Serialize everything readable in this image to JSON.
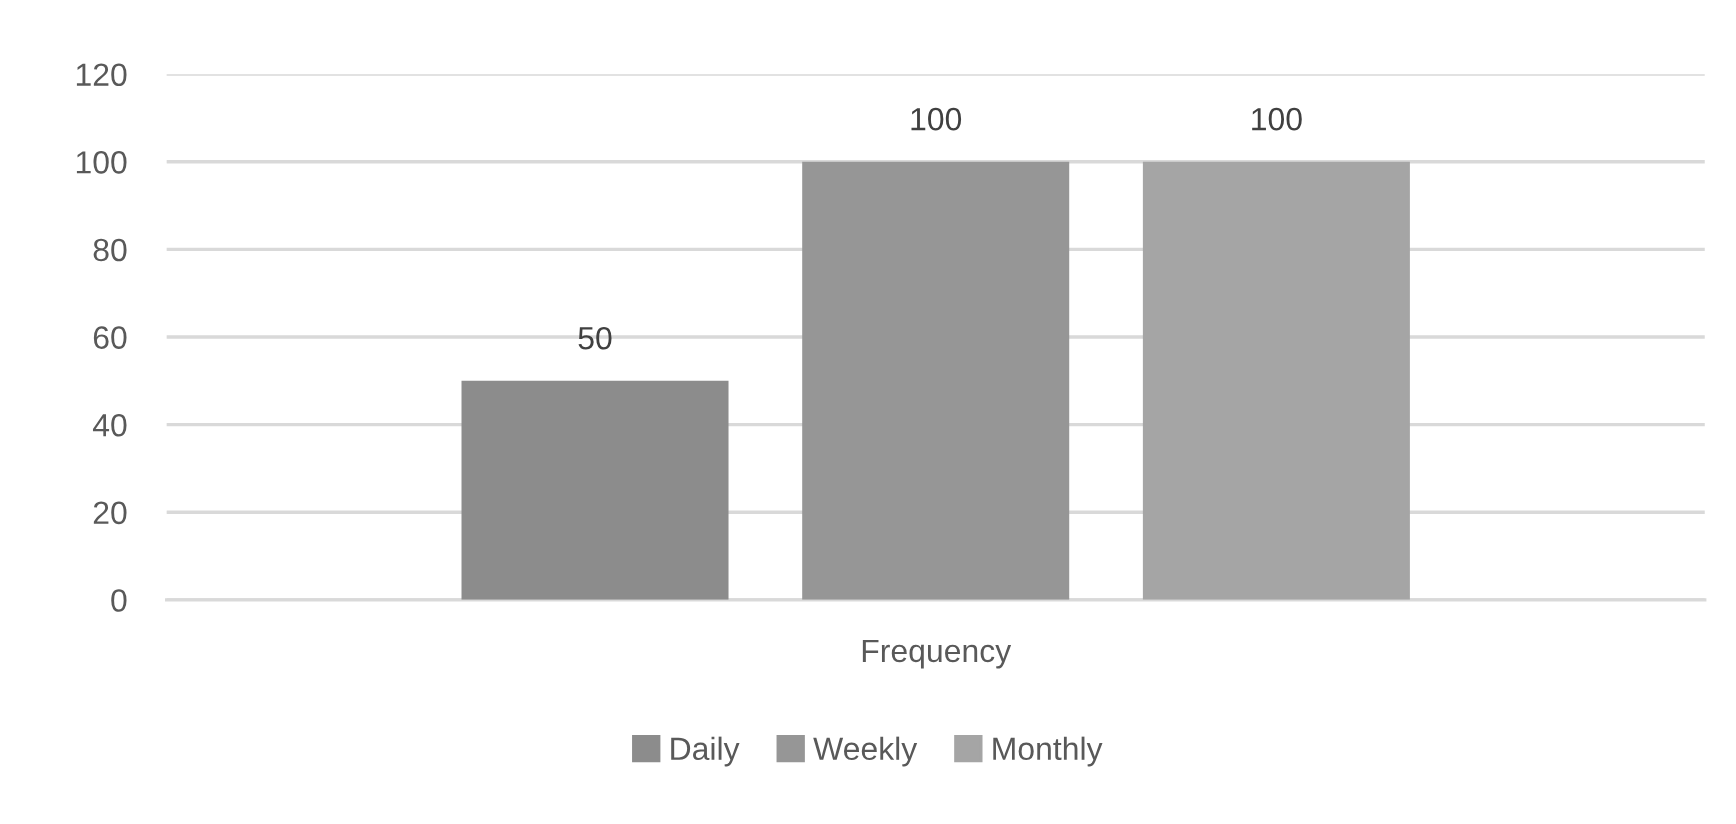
{
  "chart_data": {
    "type": "bar",
    "categories": [
      "Frequency"
    ],
    "series": [
      {
        "name": "Daily",
        "color": "#8c8c8c",
        "values": [
          50
        ]
      },
      {
        "name": "Weekly",
        "color": "#969696",
        "values": [
          100
        ]
      },
      {
        "name": "Monthly",
        "color": "#a5a5a5",
        "values": [
          100
        ]
      }
    ],
    "ylim": [
      0,
      120
    ],
    "yticks": [
      0,
      20,
      40,
      60,
      80,
      100,
      120
    ],
    "grid": "y",
    "legend": "bottom",
    "data_labels": true
  }
}
